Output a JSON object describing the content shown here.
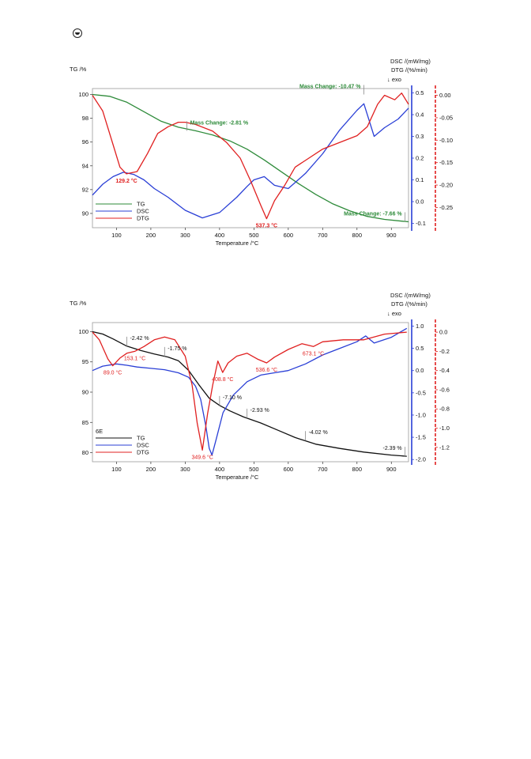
{
  "colors": {
    "tg1": "#2e8b3a",
    "dtg": "#e02020",
    "dsc": "#2a3fd6",
    "tg2": "#111111",
    "grey": "#8a8a8a"
  },
  "icons": {
    "logo": "seal-logo-icon"
  },
  "chart_data": [
    {
      "type": "line",
      "xlabel": "Temperature /°C",
      "ylabel_left": "TG /%",
      "ylabel_right1": "DSC /(mW/mg)",
      "ylabel_right2": "DTG /(%/min)",
      "exo_label": "↓ exo",
      "xlim": [
        30,
        950
      ],
      "xticks": [
        "100",
        "200",
        "300",
        "400",
        "500",
        "600",
        "700",
        "800",
        "900"
      ],
      "tg_ticks": [
        "100",
        "98",
        "96",
        "94",
        "92",
        "90"
      ],
      "dsc_ticks": [
        "0.5",
        "0.4",
        "0.3",
        "0.2",
        "0.1",
        "0.0",
        "-0.1"
      ],
      "dtg_ticks": [
        "0.00",
        "-0.05",
        "-0.10",
        "-0.15",
        "-0.20",
        "-0.25"
      ],
      "ylim_tg": [
        88.8,
        100.5
      ],
      "ylim_dsc": [
        -0.12,
        0.52
      ],
      "ylim_dtg": [
        -0.295,
        0.015
      ],
      "series": [
        {
          "name": "TG",
          "axis": "tg",
          "x": [
            30,
            80,
            130,
            180,
            230,
            280,
            330,
            380,
            430,
            480,
            530,
            580,
            630,
            680,
            730,
            780,
            830,
            880,
            930,
            950
          ],
          "values": [
            100.0,
            99.85,
            99.35,
            98.55,
            97.75,
            97.25,
            96.95,
            96.6,
            96.1,
            95.4,
            94.5,
            93.5,
            92.5,
            91.6,
            90.8,
            90.2,
            89.75,
            89.5,
            89.35,
            89.3
          ]
        },
        {
          "name": "DSC",
          "axis": "dsc",
          "x": [
            30,
            60,
            90,
            120,
            150,
            180,
            210,
            250,
            300,
            350,
            400,
            450,
            480,
            500,
            530,
            560,
            600,
            650,
            700,
            750,
            800,
            820,
            850,
            880,
            920,
            950
          ],
          "values": [
            0.03,
            0.08,
            0.115,
            0.135,
            0.125,
            0.1,
            0.06,
            0.02,
            -0.04,
            -0.075,
            -0.05,
            0.02,
            0.07,
            0.1,
            0.115,
            0.075,
            0.06,
            0.13,
            0.22,
            0.33,
            0.42,
            0.45,
            0.3,
            0.34,
            0.38,
            0.43
          ]
        },
        {
          "name": "DTG",
          "axis": "dtg",
          "x": [
            30,
            60,
            90,
            110,
            129,
            160,
            190,
            220,
            250,
            280,
            300,
            330,
            380,
            420,
            460,
            490,
            520,
            537,
            560,
            590,
            620,
            660,
            700,
            750,
            800,
            830,
            860,
            880,
            910,
            930,
            950
          ],
          "values": [
            0.0,
            -0.035,
            -0.11,
            -0.16,
            -0.175,
            -0.17,
            -0.13,
            -0.085,
            -0.07,
            -0.06,
            -0.06,
            -0.065,
            -0.08,
            -0.105,
            -0.14,
            -0.19,
            -0.245,
            -0.275,
            -0.235,
            -0.2,
            -0.16,
            -0.14,
            -0.12,
            -0.105,
            -0.09,
            -0.07,
            -0.02,
            0.0,
            -0.01,
            0.005,
            -0.02
          ]
        }
      ],
      "annotations": [
        {
          "text": "129.2 °C",
          "color": "dtg",
          "x": 129,
          "y": -0.175,
          "axis": "dtg"
        },
        {
          "text": "537.3 °C",
          "color": "dtg",
          "x": 537,
          "y": -0.275,
          "axis": "dtg"
        },
        {
          "text": "Mass Change: -2.81 %",
          "color": "tg1",
          "x": 305,
          "y": 96.95,
          "axis": "tg"
        },
        {
          "text": "Mass Change: -10.47 %",
          "color": "tg1",
          "x": 820,
          "y": 100.0,
          "axis": "tg"
        },
        {
          "text": "Mass Change: -7.66 %",
          "color": "tg1",
          "x": 940,
          "y": 89.3,
          "axis": "tg"
        }
      ],
      "legend": {
        "position": "bottom-left",
        "entries": [
          "TG",
          "DSC",
          "DTG"
        ]
      }
    },
    {
      "type": "line",
      "xlabel": "Temperature /°C",
      "ylabel_left": "TG /%",
      "ylabel_right1": "DSC /(mW/mg)",
      "ylabel_right2": "DTG /(%/min)",
      "exo_label": "↓ exo",
      "sample_label": "6E",
      "xlim": [
        30,
        950
      ],
      "xticks": [
        "100",
        "200",
        "300",
        "400",
        "500",
        "600",
        "700",
        "800",
        "900"
      ],
      "tg_ticks": [
        "100",
        "95",
        "90",
        "85",
        "80"
      ],
      "dsc_ticks": [
        "1.0",
        "0.5",
        "0.0",
        "-0.5",
        "-1.0",
        "-1.5",
        "-2.0"
      ],
      "dtg_ticks": [
        "0.0",
        "-0.2",
        "-0.4",
        "-0.6",
        "-0.8",
        "-1.0",
        "-1.2"
      ],
      "ylim_tg": [
        78.5,
        101.5
      ],
      "ylim_dsc": [
        -2.05,
        1.08
      ],
      "ylim_dtg": [
        -1.35,
        0.1
      ],
      "series": [
        {
          "name": "TG",
          "axis": "tg",
          "x": [
            30,
            60,
            90,
            130,
            170,
            210,
            250,
            280,
            310,
            340,
            370,
            400,
            430,
            470,
            520,
            570,
            620,
            680,
            750,
            820,
            900,
            945
          ],
          "values": [
            100.0,
            99.6,
            98.8,
            97.6,
            96.9,
            96.3,
            95.8,
            95.2,
            93.6,
            91.2,
            89.0,
            87.8,
            86.9,
            85.9,
            84.9,
            83.7,
            82.5,
            81.4,
            80.7,
            80.1,
            79.6,
            79.4
          ]
        },
        {
          "name": "DSC",
          "axis": "dsc",
          "x": [
            30,
            60,
            100,
            130,
            160,
            200,
            240,
            280,
            310,
            330,
            345,
            360,
            370,
            378,
            390,
            410,
            440,
            480,
            520,
            560,
            600,
            650,
            700,
            750,
            800,
            825,
            850,
            900,
            945
          ],
          "values": [
            0.0,
            0.1,
            0.15,
            0.12,
            0.08,
            0.05,
            0.02,
            -0.05,
            -0.15,
            -0.35,
            -0.65,
            -1.25,
            -1.75,
            -1.9,
            -1.55,
            -0.95,
            -0.55,
            -0.25,
            -0.1,
            -0.05,
            0.0,
            0.15,
            0.35,
            0.5,
            0.65,
            0.78,
            0.62,
            0.75,
            0.95
          ]
        },
        {
          "name": "DTG",
          "axis": "dtg",
          "x": [
            30,
            50,
            75,
            89,
            110,
            130,
            153,
            180,
            210,
            240,
            270,
            300,
            320,
            335,
            350,
            365,
            380,
            395,
            409,
            425,
            450,
            480,
            510,
            537,
            560,
            600,
            640,
            673,
            700,
            760,
            820,
            880,
            945
          ],
          "values": [
            0.0,
            -0.08,
            -0.28,
            -0.35,
            -0.27,
            -0.22,
            -0.2,
            -0.15,
            -0.08,
            -0.05,
            -0.08,
            -0.25,
            -0.55,
            -0.95,
            -1.23,
            -0.85,
            -0.55,
            -0.3,
            -0.42,
            -0.32,
            -0.25,
            -0.22,
            -0.28,
            -0.32,
            -0.26,
            -0.18,
            -0.12,
            -0.15,
            -0.1,
            -0.08,
            -0.08,
            -0.02,
            0.0
          ]
        }
      ],
      "annotations": [
        {
          "text": "89.0 °C",
          "color": "dtg",
          "x": 89,
          "y": -0.35,
          "axis": "dtg"
        },
        {
          "text": "153.1 °C",
          "color": "dtg",
          "x": 153,
          "y": -0.2,
          "axis": "dtg"
        },
        {
          "text": "349.6 °C",
          "color": "dtg",
          "x": 350,
          "y": -1.23,
          "axis": "dtg"
        },
        {
          "text": "408.8 °C",
          "color": "dtg",
          "x": 409,
          "y": -0.42,
          "axis": "dtg"
        },
        {
          "text": "536.6 °C",
          "color": "dtg",
          "x": 537,
          "y": -0.32,
          "axis": "dtg"
        },
        {
          "text": "673.1 °C",
          "color": "dtg",
          "x": 673,
          "y": -0.15,
          "axis": "dtg"
        },
        {
          "text": "-2.42 %",
          "color": "tg2",
          "x": 130,
          "y": 97.6,
          "axis": "tg"
        },
        {
          "text": "-1.75 %",
          "color": "tg2",
          "x": 240,
          "y": 95.9,
          "axis": "tg"
        },
        {
          "text": "-7.10 %",
          "color": "tg2",
          "x": 400,
          "y": 87.8,
          "axis": "tg"
        },
        {
          "text": "-2.93 %",
          "color": "tg2",
          "x": 480,
          "y": 85.7,
          "axis": "tg"
        },
        {
          "text": "-4.02 %",
          "color": "tg2",
          "x": 650,
          "y": 82.0,
          "axis": "tg"
        },
        {
          "text": "-2.39 %",
          "color": "tg2",
          "x": 940,
          "y": 79.4,
          "axis": "tg"
        }
      ],
      "legend": {
        "position": "bottom-left",
        "entries": [
          "TG",
          "DSC",
          "DTG"
        ]
      }
    }
  ]
}
